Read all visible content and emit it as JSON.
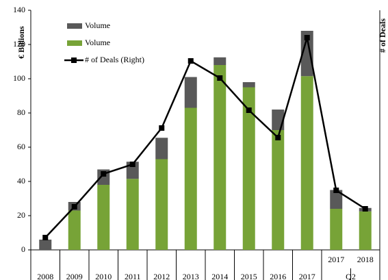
{
  "chart_data": {
    "type": "bar",
    "y_label": "€ Billions",
    "y2_label": "# of Deals",
    "categories": [
      "2008",
      "2009",
      "2010",
      "2011",
      "2012",
      "2013",
      "2014",
      "2015",
      "2016",
      "2017",
      "2017",
      "2018"
    ],
    "category_group": "Q2",
    "series": [
      {
        "name": "Volume",
        "color": "#77a337",
        "type": "bar",
        "values": [
          0,
          23,
          38,
          41.5,
          53,
          83,
          108,
          95,
          70,
          101.5,
          24,
          22.5
        ]
      },
      {
        "name": "Volume",
        "color": "#595959",
        "type": "bar",
        "values": [
          6,
          5,
          9,
          10,
          12.5,
          18,
          4.5,
          3,
          12,
          26.5,
          11,
          2
        ]
      },
      {
        "name": "# of Deals (Right)",
        "color": "#000000",
        "type": "line",
        "axis": "y2",
        "values": [
          7.2,
          25.2,
          44.4,
          50,
          71.2,
          110.4,
          100.4,
          81.6,
          65.6,
          124,
          34.8,
          24
        ]
      }
    ],
    "ylim": [
      0,
      140
    ],
    "yticks": [
      0,
      20,
      40,
      60,
      80,
      100,
      120,
      140
    ],
    "y2lim": [
      0,
      140
    ],
    "legend": "top-left"
  }
}
